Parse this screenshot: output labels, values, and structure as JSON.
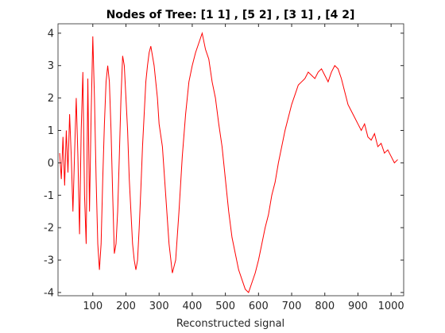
{
  "chart_data": {
    "type": "line",
    "title": "Nodes of Tree: [1  1] , [5  2] , [3  1] , [4  2]",
    "xlabel": "Reconstructed signal",
    "x": [
      0,
      5,
      10,
      15,
      20,
      25,
      30,
      35,
      40,
      45,
      50,
      55,
      60,
      65,
      70,
      75,
      80,
      85,
      90,
      95,
      100,
      105,
      110,
      115,
      120,
      125,
      130,
      135,
      140,
      145,
      150,
      155,
      160,
      165,
      170,
      175,
      180,
      185,
      190,
      195,
      200,
      205,
      210,
      215,
      220,
      225,
      230,
      235,
      240,
      245,
      250,
      255,
      260,
      265,
      270,
      275,
      280,
      285,
      290,
      295,
      300,
      310,
      320,
      330,
      340,
      350,
      360,
      370,
      380,
      390,
      400,
      410,
      420,
      430,
      440,
      450,
      460,
      470,
      480,
      490,
      500,
      510,
      520,
      530,
      540,
      550,
      560,
      570,
      580,
      590,
      600,
      610,
      620,
      630,
      640,
      650,
      660,
      670,
      680,
      690,
      700,
      710,
      720,
      730,
      740,
      750,
      760,
      770,
      780,
      790,
      800,
      810,
      820,
      830,
      840,
      850,
      860,
      870,
      880,
      890,
      900,
      910,
      920,
      930,
      940,
      950,
      960,
      970,
      980,
      990,
      1000,
      1010,
      1020
    ],
    "series": [
      {
        "color": "#ff0000",
        "values": [
          0.3,
          -0.5,
          0.8,
          -0.7,
          1.0,
          -0.3,
          1.5,
          0.2,
          -1.5,
          0.3,
          2.0,
          0.2,
          -2.2,
          1.0,
          2.8,
          -1.0,
          -2.5,
          2.6,
          -1.5,
          1.5,
          3.9,
          2.0,
          -0.5,
          -2.5,
          -3.3,
          -2.5,
          -0.5,
          1.2,
          2.5,
          3.0,
          2.5,
          1.0,
          -1.0,
          -2.8,
          -2.5,
          -1.5,
          0.2,
          2.0,
          3.3,
          3.0,
          2.0,
          1.0,
          -0.5,
          -1.5,
          -2.5,
          -3.0,
          -3.3,
          -3.0,
          -2.0,
          -0.8,
          0.5,
          1.5,
          2.5,
          3.0,
          3.4,
          3.6,
          3.3,
          3.0,
          2.5,
          2.0,
          1.2,
          0.5,
          -1.0,
          -2.5,
          -3.4,
          -3.0,
          -1.5,
          0.2,
          1.5,
          2.5,
          3.0,
          3.4,
          3.7,
          4.0,
          3.5,
          3.2,
          2.5,
          2.0,
          1.2,
          0.5,
          -0.5,
          -1.5,
          -2.3,
          -2.8,
          -3.3,
          -3.6,
          -3.9,
          -4.0,
          -3.7,
          -3.4,
          -3.0,
          -2.5,
          -2.0,
          -1.6,
          -1.0,
          -0.6,
          0.0,
          0.5,
          1.0,
          1.4,
          1.8,
          2.1,
          2.4,
          2.5,
          2.6,
          2.8,
          2.7,
          2.6,
          2.8,
          2.9,
          2.7,
          2.5,
          2.8,
          3.0,
          2.9,
          2.6,
          2.2,
          1.8,
          1.6,
          1.4,
          1.2,
          1.0,
          1.2,
          0.8,
          0.7,
          0.9,
          0.5,
          0.6,
          0.3,
          0.4,
          0.2,
          0.0,
          0.1
        ]
      }
    ],
    "xlim": [
      -5,
      1038
    ],
    "ylim": [
      -4.1,
      4.29
    ],
    "xticks": [
      100,
      200,
      300,
      400,
      500,
      600,
      700,
      800,
      900,
      1000
    ],
    "yticks": [
      -4,
      -3,
      -2,
      -1,
      0,
      1,
      2,
      3,
      4
    ]
  }
}
